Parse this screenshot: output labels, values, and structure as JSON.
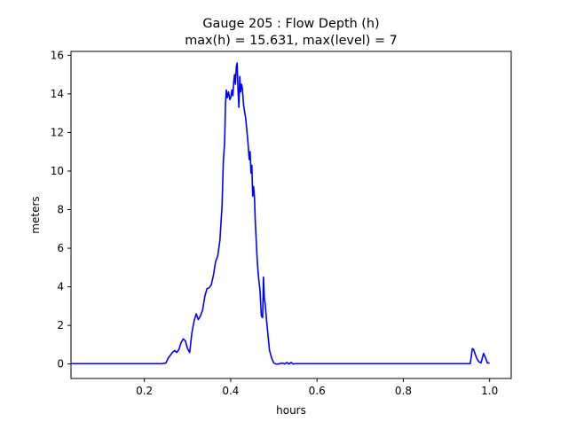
{
  "colors": {
    "line": "#0000ff",
    "axes": "#000000",
    "background": "#ffffff"
  },
  "chart_data": {
    "type": "line",
    "title_lines": [
      "Gauge 205 : Flow Depth (h)",
      "max(h) =  15.631,    max(level) = 7"
    ],
    "xlabel": "hours",
    "ylabel": "meters",
    "xlim": [
      0.03,
      1.05
    ],
    "ylim": [
      -0.75,
      16.2
    ],
    "grid": false,
    "xticks": [
      0.2,
      0.4,
      0.6,
      0.8,
      1.0
    ],
    "xtick_labels": [
      "0.2",
      "0.4",
      "0.6",
      "0.8",
      "1.0"
    ],
    "yticks": [
      0,
      2,
      4,
      6,
      8,
      10,
      12,
      14,
      16
    ],
    "ytick_labels": [
      "0",
      "2",
      "4",
      "6",
      "8",
      "10",
      "12",
      "14",
      "16"
    ],
    "series": [
      {
        "color": "#0000ff",
        "x": [
          0.03,
          0.24,
          0.25,
          0.255,
          0.26,
          0.265,
          0.27,
          0.275,
          0.28,
          0.285,
          0.29,
          0.295,
          0.3,
          0.305,
          0.31,
          0.315,
          0.32,
          0.325,
          0.33,
          0.335,
          0.34,
          0.345,
          0.35,
          0.355,
          0.36,
          0.365,
          0.37,
          0.375,
          0.38,
          0.383,
          0.386,
          0.388,
          0.39,
          0.392,
          0.395,
          0.398,
          0.4,
          0.403,
          0.405,
          0.407,
          0.409,
          0.411,
          0.413,
          0.415,
          0.417,
          0.419,
          0.421,
          0.423,
          0.425,
          0.427,
          0.43,
          0.435,
          0.44,
          0.443,
          0.445,
          0.447,
          0.449,
          0.451,
          0.453,
          0.455,
          0.457,
          0.459,
          0.461,
          0.463,
          0.465,
          0.468,
          0.471,
          0.474,
          0.476,
          0.478,
          0.48,
          0.483,
          0.486,
          0.49,
          0.495,
          0.5,
          0.505,
          0.51,
          0.52,
          0.525,
          0.53,
          0.535,
          0.54,
          0.545,
          0.55,
          0.6,
          0.8,
          0.955,
          0.957,
          0.96,
          0.963,
          0.966,
          0.97,
          0.975,
          0.98,
          0.983,
          0.986,
          0.99,
          0.995,
          1.0
        ],
        "y": [
          0.02,
          0.02,
          0.05,
          0.3,
          0.45,
          0.6,
          0.7,
          0.6,
          0.75,
          1.1,
          1.3,
          1.2,
          0.8,
          0.6,
          1.6,
          2.2,
          2.6,
          2.3,
          2.5,
          2.8,
          3.5,
          3.9,
          3.95,
          4.1,
          4.6,
          5.3,
          5.6,
          6.4,
          8.2,
          10.5,
          11.5,
          13.5,
          14.2,
          13.8,
          14.1,
          13.7,
          13.8,
          14.2,
          13.9,
          14.6,
          15.0,
          14.5,
          15.4,
          15.6,
          14.2,
          13.3,
          14.9,
          14.1,
          14.5,
          14.3,
          13.4,
          12.7,
          11.5,
          10.6,
          11.0,
          9.9,
          10.3,
          8.7,
          9.2,
          8.7,
          7.4,
          6.5,
          5.6,
          4.9,
          4.4,
          3.8,
          2.5,
          2.4,
          4.5,
          3.4,
          3.1,
          2.3,
          1.6,
          0.7,
          0.3,
          0.05,
          0.0,
          0.0,
          0.05,
          0.0,
          0.08,
          0.0,
          0.08,
          0.0,
          0.02,
          0.02,
          0.02,
          0.02,
          0.3,
          0.8,
          0.75,
          0.55,
          0.3,
          0.12,
          0.05,
          0.3,
          0.55,
          0.35,
          0.05,
          0.05
        ]
      }
    ]
  }
}
